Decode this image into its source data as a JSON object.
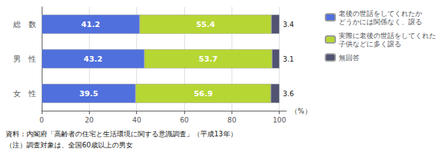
{
  "chart_data": {
    "type": "bar",
    "orientation": "horizontal",
    "stacked": true,
    "categories": [
      "総　数",
      "男　性",
      "女　性"
    ],
    "series": [
      {
        "name": "老後の世話をしてくれたか\nどうかには関係なく、譲る",
        "values": [
          41.2,
          43.2,
          39.5
        ]
      },
      {
        "name": "実際に老後の世話をしてくれた\n子供などに多く譲る",
        "values": [
          55.4,
          53.7,
          56.9
        ]
      },
      {
        "name": "無回答",
        "values": [
          3.4,
          3.1,
          3.6
        ]
      }
    ],
    "xlabel": "（%）",
    "xlim": [
      0,
      103
    ],
    "xticks": [
      0,
      20,
      40,
      60,
      80,
      100
    ],
    "grid": true,
    "legend": "right",
    "data_labels": true,
    "annotations": [
      "資料：内閣府「高齢者の住宅と生活環境に関する意識調査」（平成13年）",
      "（注）調査対象は、全国60歳以上の男女"
    ]
  }
}
